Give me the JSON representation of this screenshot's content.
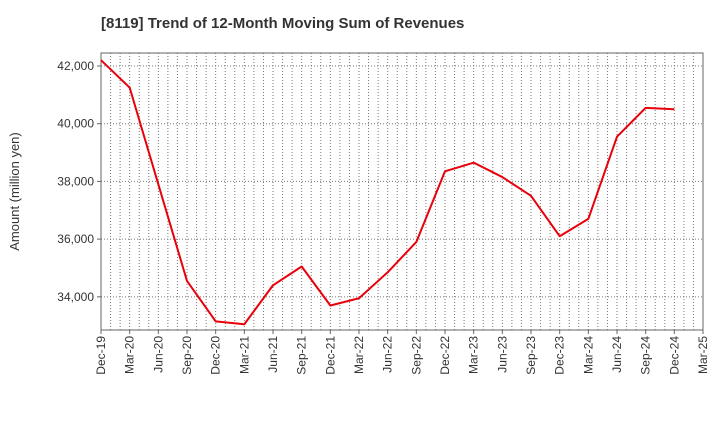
{
  "chart_data": {
    "type": "line",
    "title": "[8119]  Trend of 12-Month Moving Sum of Revenues",
    "xlabel": "",
    "ylabel": "Amount (million yen)",
    "ylim": [
      32850,
      42450
    ],
    "yticks": [
      34000,
      36000,
      38000,
      40000,
      42000
    ],
    "ytick_labels": [
      "34,000",
      "36,000",
      "38,000",
      "40,000",
      "42,000"
    ],
    "x_tick_labels": [
      "Dec-19",
      "Mar-20",
      "Jun-20",
      "Sep-20",
      "Dec-20",
      "Mar-21",
      "Jun-21",
      "Sep-21",
      "Dec-21",
      "Mar-22",
      "Jun-22",
      "Sep-22",
      "Dec-22",
      "Mar-23",
      "Jun-23",
      "Sep-23",
      "Dec-23",
      "Mar-24",
      "Jun-24",
      "Sep-24",
      "Dec-24",
      "Mar-25"
    ],
    "grid": true,
    "line_color": "#e8000b",
    "series": [
      {
        "x": [
          "Dec-19",
          "Mar-20",
          "Jun-20",
          "Sep-20",
          "Dec-20",
          "Mar-21",
          "Jun-21",
          "Sep-21",
          "Dec-21",
          "Mar-22",
          "Jun-22",
          "Sep-22",
          "Dec-22",
          "Mar-23",
          "Jun-23",
          "Sep-23",
          "Dec-23",
          "Mar-24",
          "Jun-24",
          "Sep-24",
          "Dec-24"
        ],
        "values": [
          42200,
          41250,
          37900,
          34550,
          33150,
          33050,
          34400,
          35050,
          33700,
          33950,
          34850,
          35900,
          38350,
          38650,
          38150,
          37500,
          36100,
          36700,
          39550,
          40550,
          40500
        ]
      }
    ]
  }
}
